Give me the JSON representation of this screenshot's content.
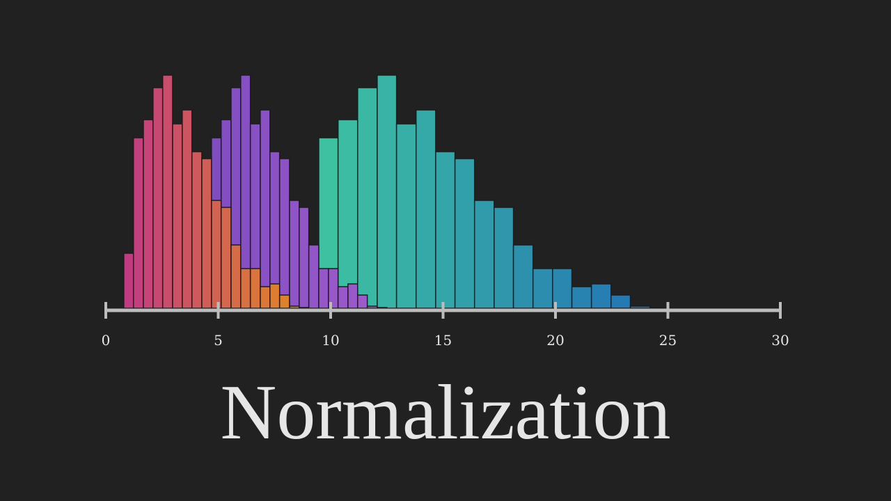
{
  "chart_data": {
    "type": "histogram",
    "title": "Normalization",
    "xlim": [
      0,
      30
    ],
    "xticks": [
      0,
      5,
      10,
      15,
      20,
      25,
      30
    ],
    "series": [
      {
        "colors": [
          "#3fc6a0",
          "#2270b6"
        ],
        "bins": [
          8.6,
          9.47,
          10.33,
          11.2,
          12.07,
          12.93,
          13.8,
          14.67,
          15.53,
          16.4,
          17.27,
          18.13,
          19,
          19.87,
          20.73,
          21.6,
          22.47,
          23.33,
          24.2,
          25.07
        ],
        "values": [
          79,
          245,
          271,
          317,
          335,
          265,
          285,
          225,
          215,
          155,
          145,
          91,
          57,
          57,
          31,
          35,
          19,
          3,
          1
        ]
      },
      {
        "colors": [
          "#7e4cc0",
          "#a05ccb"
        ],
        "bins": [
          4.27,
          4.7,
          5.13,
          5.57,
          6,
          6.43,
          6.87,
          7.3,
          7.73,
          8.17,
          8.6,
          9.03,
          9.47,
          9.9,
          10.33,
          10.77,
          11.2,
          11.63,
          12.07,
          12.5
        ],
        "values": [
          79,
          245,
          271,
          317,
          335,
          265,
          285,
          225,
          215,
          155,
          145,
          91,
          57,
          57,
          31,
          35,
          19,
          3,
          1
        ]
      },
      {
        "colors": [
          "#c23b82",
          "#e28a22"
        ],
        "bins": [
          0.8,
          1.23,
          1.67,
          2.1,
          2.53,
          2.97,
          3.4,
          3.83,
          4.27,
          4.7,
          5.13,
          5.57,
          6,
          6.43,
          6.87,
          7.3,
          7.73,
          8.17,
          8.6,
          9.03
        ],
        "values": [
          79,
          245,
          271,
          317,
          335,
          265,
          285,
          225,
          215,
          155,
          145,
          91,
          57,
          57,
          31,
          35,
          19,
          3,
          1
        ]
      }
    ]
  }
}
